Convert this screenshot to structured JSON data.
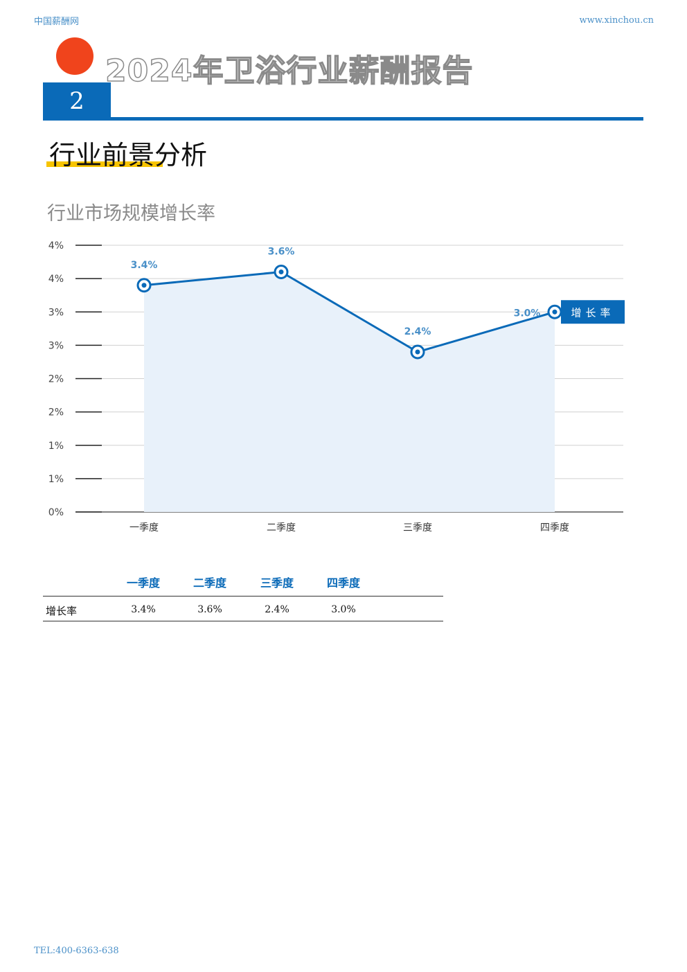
{
  "header": {
    "site_name": "中国薪酬网",
    "site_url": "www.xinchou.cn"
  },
  "report": {
    "title": "2024年卫浴行业薪酬报告",
    "section_number": "2",
    "section_title": "行业前景分析"
  },
  "chart_title": "行业市场规模增长率",
  "colors": {
    "accent": "#0a6ab8",
    "highlight": "#f7c400",
    "dot": "#f0441c",
    "area_fill": "#e8f1fa"
  },
  "chart_data": {
    "type": "area",
    "title": "行业市场规模增长率",
    "categories": [
      "一季度",
      "二季度",
      "三季度",
      "四季度"
    ],
    "series": [
      {
        "name": "增长率",
        "values": [
          3.4,
          3.6,
          2.4,
          3.0
        ],
        "labels": [
          "3.4%",
          "3.6%",
          "2.4%",
          "3.0%"
        ]
      }
    ],
    "y_tick_labels": [
      "0%",
      "1%",
      "1%",
      "2%",
      "2%",
      "3%",
      "3%",
      "4%",
      "4%"
    ],
    "ylim": [
      0,
      4
    ],
    "grid": true,
    "legend_placement": "right"
  },
  "table": {
    "headers": [
      "一季度",
      "二季度",
      "三季度",
      "四季度"
    ],
    "row_label": "增长率",
    "values": [
      "3.4%",
      "3.6%",
      "2.4%",
      "3.0%"
    ]
  },
  "footer": {
    "tel": "TEL:400-6363-638"
  }
}
